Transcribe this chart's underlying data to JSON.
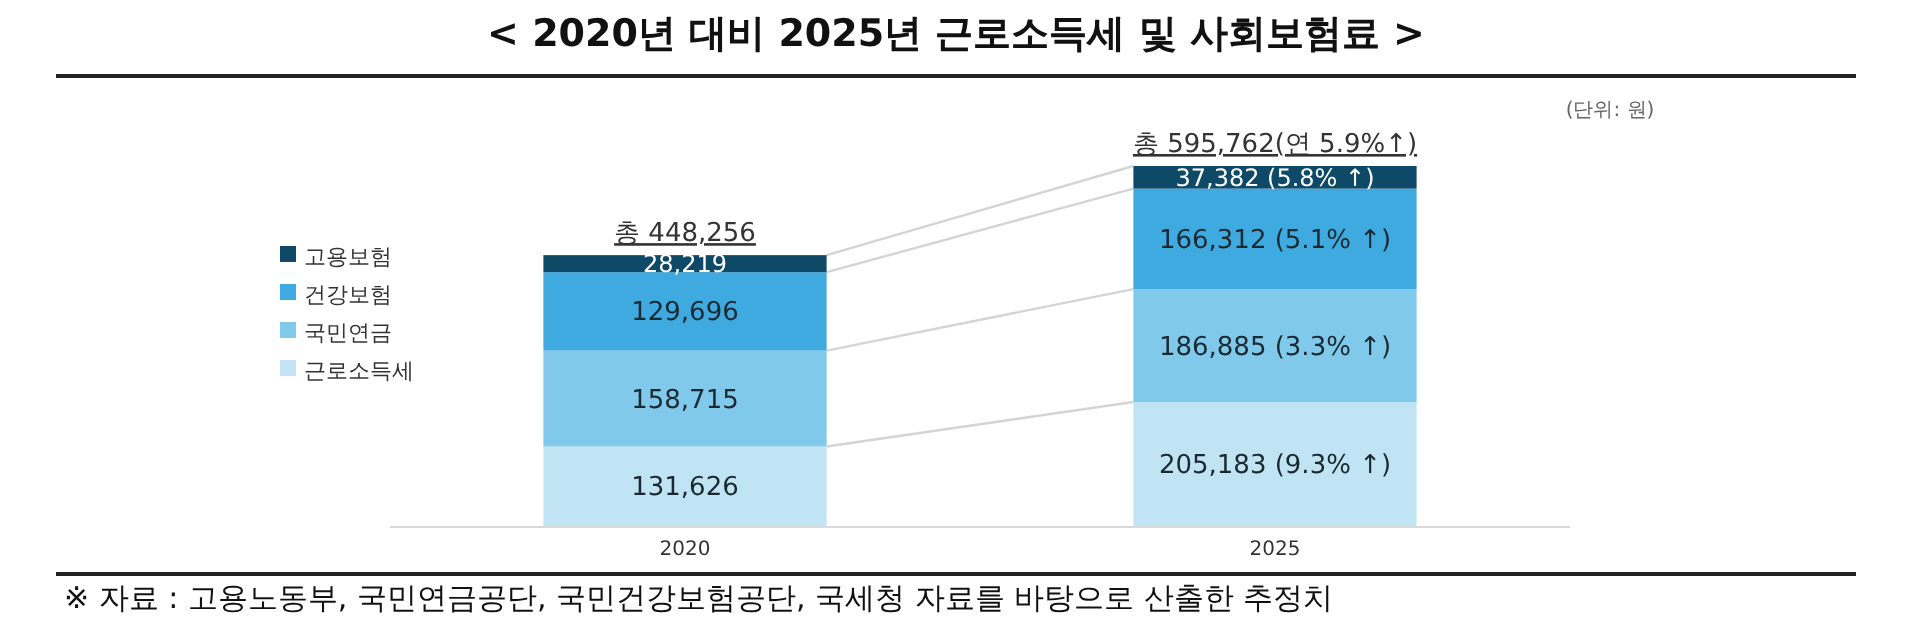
{
  "chart_data": {
    "type": "bar",
    "stacked": true,
    "title": "< 2020년 대비 2025년 근로소득세 및 사회보험료 >",
    "categories": [
      "2020",
      "2025"
    ],
    "series": [
      {
        "name": "근로소득세",
        "color": "#c1e4f5",
        "values": [
          131626,
          205183
        ],
        "value_labels": [
          "131,626",
          "205,183 (9.3% ↑)"
        ]
      },
      {
        "name": "국민연금",
        "color": "#80c9eb",
        "values": [
          158715,
          186885
        ],
        "value_labels": [
          "158,715",
          "186,885 (3.3% ↑)"
        ]
      },
      {
        "name": "건강보험",
        "color": "#3eaae0",
        "values": [
          129696,
          166312
        ],
        "value_labels": [
          "129,696",
          "166,312 (5.1% ↑)"
        ]
      },
      {
        "name": "고용보험",
        "color": "#0e4a68",
        "values": [
          28219,
          37382
        ],
        "value_labels": [
          "28,219",
          "37,382 (5.8% ↑)"
        ]
      }
    ],
    "totals": [
      "총 448,256",
      "총 595,762(연 5.9%↑)"
    ],
    "legend": "left",
    "annotations": [
      "(단위: 원)",
      "※ 자료 : 고용노동부, 국민연금공단, 국민건강보험공단, 국세청 자료를 바탕으로 산출한 추정치"
    ]
  }
}
